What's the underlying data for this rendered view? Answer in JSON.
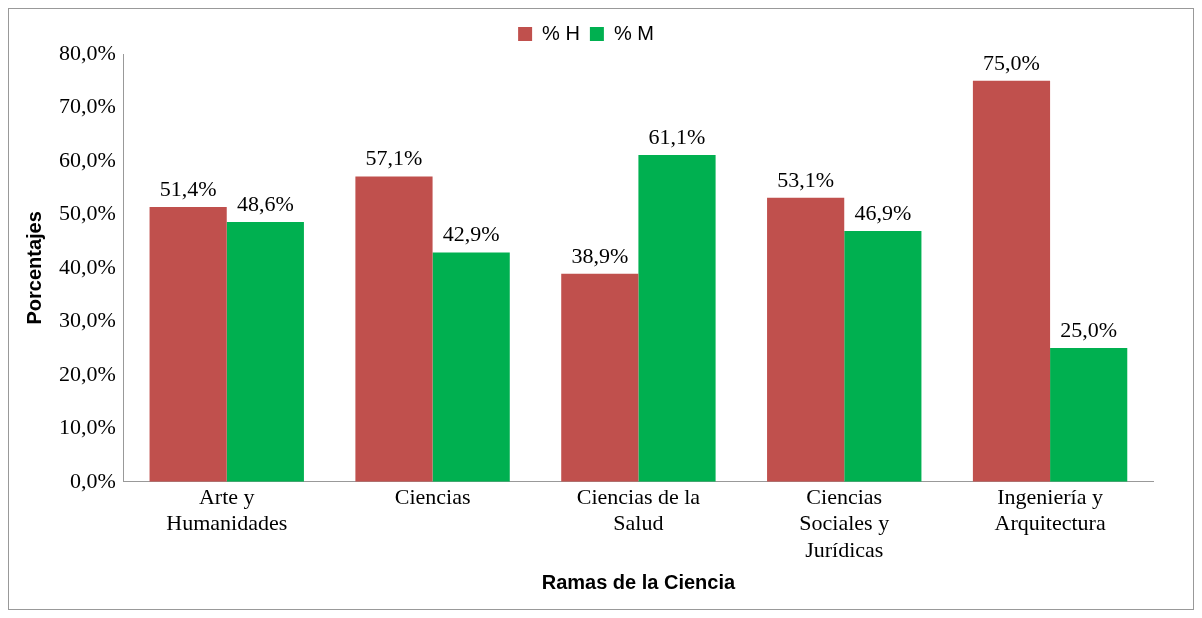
{
  "chart_data": {
    "type": "bar",
    "xlabel": "Ramas de la Ciencia",
    "ylabel": "Porcentajes",
    "categories": [
      "Arte y Humanidades",
      "Ciencias",
      "Ciencias de la Salud",
      "Ciencias Sociales y Jurídicas",
      "Ingeniería y Arquitectura"
    ],
    "series": [
      {
        "name": "% H",
        "color": "#c0504d",
        "values": [
          51.4,
          57.1,
          38.9,
          53.1,
          75.0
        ],
        "value_labels": [
          "51,4%",
          "57,1%",
          "38,9%",
          "53,1%",
          "75,0%"
        ]
      },
      {
        "name": "% M",
        "color": "#00b050",
        "values": [
          48.6,
          42.9,
          61.1,
          46.9,
          25.0
        ],
        "value_labels": [
          "48,6%",
          "42,9%",
          "61,1%",
          "46,9%",
          "25,0%"
        ]
      }
    ],
    "ylim": [
      0,
      80
    ],
    "yticks": [
      {
        "value": 0,
        "label": "0,0%"
      },
      {
        "value": 10,
        "label": "10,0%"
      },
      {
        "value": 20,
        "label": "20,0%"
      },
      {
        "value": 30,
        "label": "30,0%"
      },
      {
        "value": 40,
        "label": "40,0%"
      },
      {
        "value": 50,
        "label": "50,0%"
      },
      {
        "value": 60,
        "label": "60,0%"
      },
      {
        "value": 70,
        "label": "70,0%"
      },
      {
        "value": 80,
        "label": "80,0%"
      }
    ],
    "grid": false,
    "legend": "top"
  }
}
